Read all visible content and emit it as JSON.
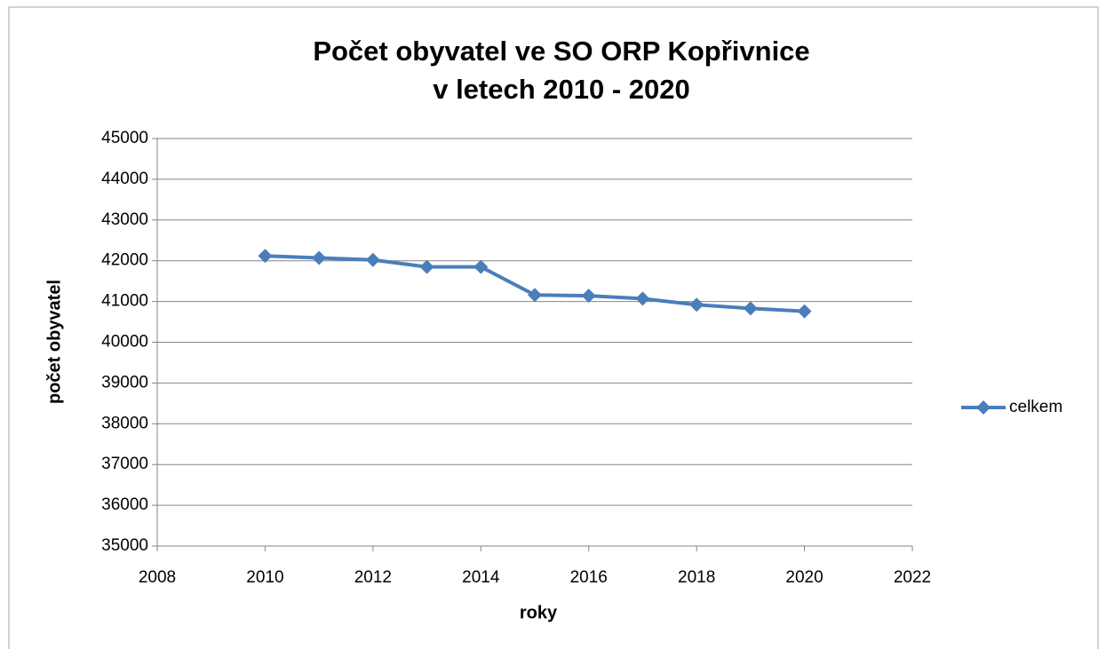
{
  "chart_data": {
    "type": "line",
    "title": [
      "Počet obyvatel ve SO ORP Kopřivnice",
      "v letech  2010 - 2020"
    ],
    "x_label": "roky",
    "y_label": "počet obyvatel",
    "x": [
      2010,
      2011,
      2012,
      2013,
      2014,
      2015,
      2016,
      2017,
      2018,
      2019,
      2020
    ],
    "series": [
      {
        "name": "celkem",
        "color": "#4a7ebb",
        "values": [
          42120,
          42070,
          42020,
          41850,
          41850,
          41160,
          41140,
          41070,
          40920,
          40830,
          40760
        ]
      }
    ],
    "xlim": [
      2008,
      2022
    ],
    "xticks": [
      2008,
      2010,
      2012,
      2014,
      2016,
      2018,
      2020,
      2022
    ],
    "ylim": [
      35000,
      45000
    ],
    "yticks": [
      35000,
      36000,
      37000,
      38000,
      39000,
      40000,
      41000,
      42000,
      43000,
      44000,
      45000
    ],
    "grid": true,
    "legend": "right"
  }
}
